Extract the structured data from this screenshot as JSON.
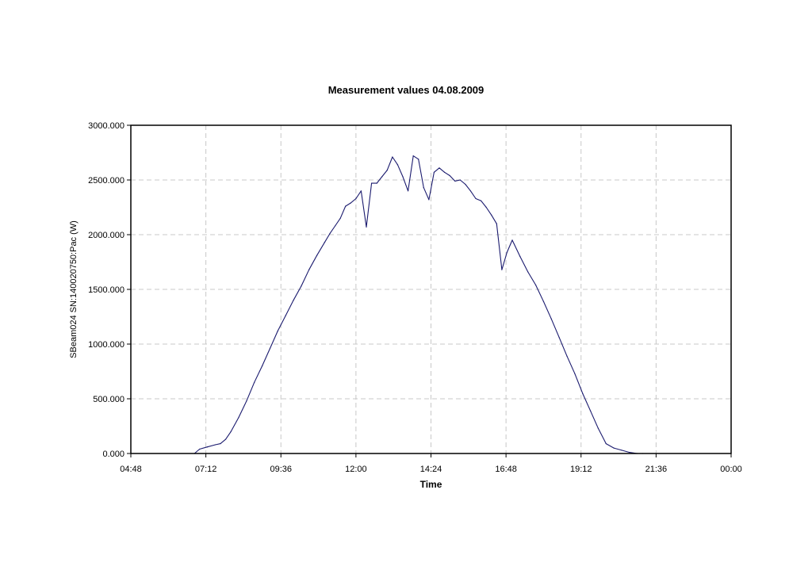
{
  "chart_data": {
    "type": "line",
    "title": "Measurement values 04.08.2009",
    "xlabel": "Time",
    "ylabel": "SBeam024 SN:140020750:Pac (W)",
    "xlim": [
      "04:48",
      "00:00"
    ],
    "ylim": [
      0,
      3000
    ],
    "x_tick_labels": [
      "04:48",
      "07:12",
      "09:36",
      "12:00",
      "14:24",
      "16:48",
      "19:12",
      "21:36",
      "00:00"
    ],
    "y_tick_labels": [
      "0.000",
      "500.000",
      "1000.000",
      "1500.000",
      "2000.000",
      "2500.000",
      "3000.000"
    ],
    "grid": true,
    "legend": "none",
    "series_color": "#1a1a6e",
    "series": [
      {
        "x": [
          "06:50",
          "07:00",
          "07:15",
          "07:30",
          "07:40",
          "07:50",
          "08:00",
          "08:15",
          "08:30",
          "08:45",
          "09:00",
          "09:15",
          "09:30",
          "09:45",
          "10:00",
          "10:15",
          "10:30",
          "10:45",
          "11:00",
          "11:10",
          "11:20",
          "11:30",
          "11:40",
          "11:50",
          "12:00",
          "12:10",
          "12:20",
          "12:30",
          "12:40",
          "12:50",
          "13:00",
          "13:10",
          "13:20",
          "13:30",
          "13:40",
          "13:50",
          "14:00",
          "14:10",
          "14:20",
          "14:30",
          "14:40",
          "14:50",
          "15:00",
          "15:10",
          "15:20",
          "15:30",
          "15:40",
          "15:50",
          "16:00",
          "16:10",
          "16:20",
          "16:30",
          "16:40",
          "16:50",
          "17:00",
          "17:15",
          "17:30",
          "17:45",
          "18:00",
          "18:15",
          "18:30",
          "18:45",
          "19:00",
          "19:15",
          "19:30",
          "19:45",
          "20:00",
          "20:15",
          "20:30",
          "20:45",
          "21:00",
          "21:10"
        ],
        "values": [
          0,
          40,
          60,
          80,
          90,
          130,
          200,
          330,
          480,
          650,
          800,
          960,
          1120,
          1260,
          1400,
          1530,
          1680,
          1810,
          1930,
          2010,
          2080,
          2150,
          2260,
          2290,
          2330,
          2400,
          2070,
          2470,
          2470,
          2530,
          2590,
          2710,
          2640,
          2530,
          2400,
          2720,
          2690,
          2430,
          2320,
          2570,
          2610,
          2570,
          2540,
          2490,
          2500,
          2460,
          2400,
          2330,
          2310,
          2250,
          2180,
          2100,
          1680,
          1840,
          1950,
          1800,
          1660,
          1540,
          1390,
          1230,
          1060,
          890,
          730,
          550,
          390,
          230,
          90,
          50,
          30,
          10,
          0,
          0
        ]
      }
    ]
  }
}
